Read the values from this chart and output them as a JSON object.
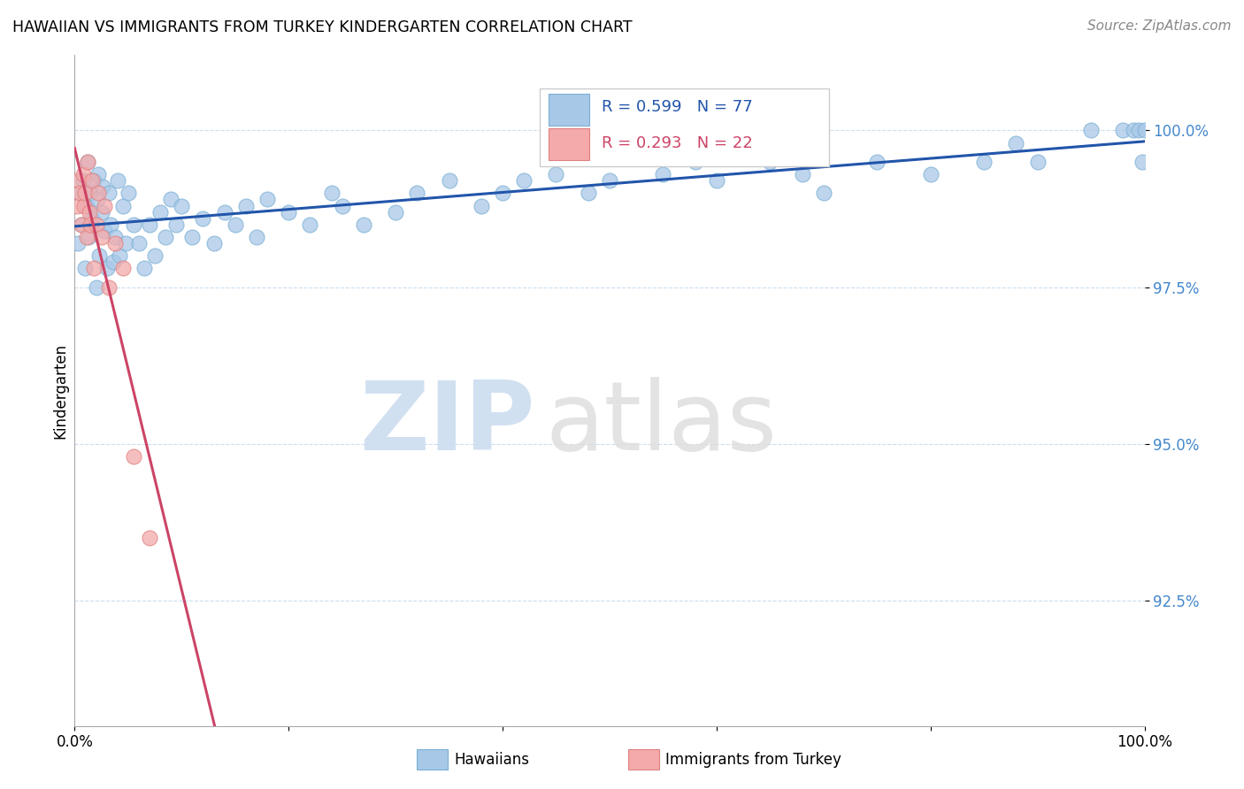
{
  "title": "HAWAIIAN VS IMMIGRANTS FROM TURKEY KINDERGARTEN CORRELATION CHART",
  "source": "Source: ZipAtlas.com",
  "ylabel": "Kindergarten",
  "ytick_labels": [
    "92.5%",
    "95.0%",
    "97.5%",
    "100.0%"
  ],
  "ytick_values": [
    92.5,
    95.0,
    97.5,
    100.0
  ],
  "legend_label_blue": "Hawaiians",
  "legend_label_pink": "Immigrants from Turkey",
  "R_blue": 0.599,
  "N_blue": 77,
  "R_pink": 0.293,
  "N_pink": 22,
  "blue_color": "#A8C8E8",
  "blue_edge_color": "#7AAFD4",
  "blue_line_color": "#2255AA",
  "pink_color": "#F4AAAA",
  "pink_edge_color": "#E08080",
  "pink_line_color": "#CC4466",
  "xlim": [
    0.0,
    100.0
  ],
  "ylim": [
    90.5,
    101.2
  ],
  "blue_x": [
    0.3,
    0.5,
    0.6,
    0.8,
    1.0,
    1.1,
    1.2,
    1.3,
    1.5,
    1.6,
    1.8,
    2.0,
    2.1,
    2.2,
    2.3,
    2.5,
    2.6,
    2.8,
    3.0,
    3.2,
    3.4,
    3.6,
    3.8,
    4.0,
    4.2,
    4.5,
    4.8,
    5.0,
    5.5,
    6.0,
    6.5,
    7.0,
    7.5,
    8.0,
    8.5,
    9.0,
    9.5,
    10.0,
    11.0,
    12.0,
    13.0,
    14.0,
    15.0,
    16.0,
    17.0,
    18.0,
    20.0,
    22.0,
    24.0,
    25.0,
    27.0,
    30.0,
    32.0,
    35.0,
    38.0,
    40.0,
    42.0,
    45.0,
    48.0,
    50.0,
    55.0,
    58.0,
    60.0,
    65.0,
    68.0,
    70.0,
    75.0,
    80.0,
    85.0,
    88.0,
    90.0,
    95.0,
    98.0,
    99.0,
    99.5,
    99.8,
    100.0
  ],
  "blue_y": [
    98.2,
    99.0,
    98.5,
    99.2,
    97.8,
    98.8,
    99.5,
    98.3,
    99.0,
    98.6,
    99.2,
    97.5,
    98.9,
    99.3,
    98.0,
    98.7,
    99.1,
    98.4,
    97.8,
    99.0,
    98.5,
    97.9,
    98.3,
    99.2,
    98.0,
    98.8,
    98.2,
    99.0,
    98.5,
    98.2,
    97.8,
    98.5,
    98.0,
    98.7,
    98.3,
    98.9,
    98.5,
    98.8,
    98.3,
    98.6,
    98.2,
    98.7,
    98.5,
    98.8,
    98.3,
    98.9,
    98.7,
    98.5,
    99.0,
    98.8,
    98.5,
    98.7,
    99.0,
    99.2,
    98.8,
    99.0,
    99.2,
    99.3,
    99.0,
    99.2,
    99.3,
    99.5,
    99.2,
    99.5,
    99.3,
    99.0,
    99.5,
    99.3,
    99.5,
    99.8,
    99.5,
    100.0,
    100.0,
    100.0,
    100.0,
    99.5,
    100.0
  ],
  "pink_x": [
    0.2,
    0.4,
    0.5,
    0.6,
    0.8,
    0.9,
    1.0,
    1.1,
    1.2,
    1.4,
    1.5,
    1.6,
    1.8,
    2.0,
    2.2,
    2.5,
    2.8,
    3.2,
    3.8,
    4.5,
    5.5,
    7.0
  ],
  "pink_y": [
    98.8,
    99.2,
    99.0,
    98.5,
    99.3,
    98.8,
    99.0,
    98.3,
    99.5,
    98.7,
    98.5,
    99.2,
    97.8,
    98.5,
    99.0,
    98.3,
    98.8,
    97.5,
    98.2,
    97.8,
    94.8,
    93.5
  ]
}
